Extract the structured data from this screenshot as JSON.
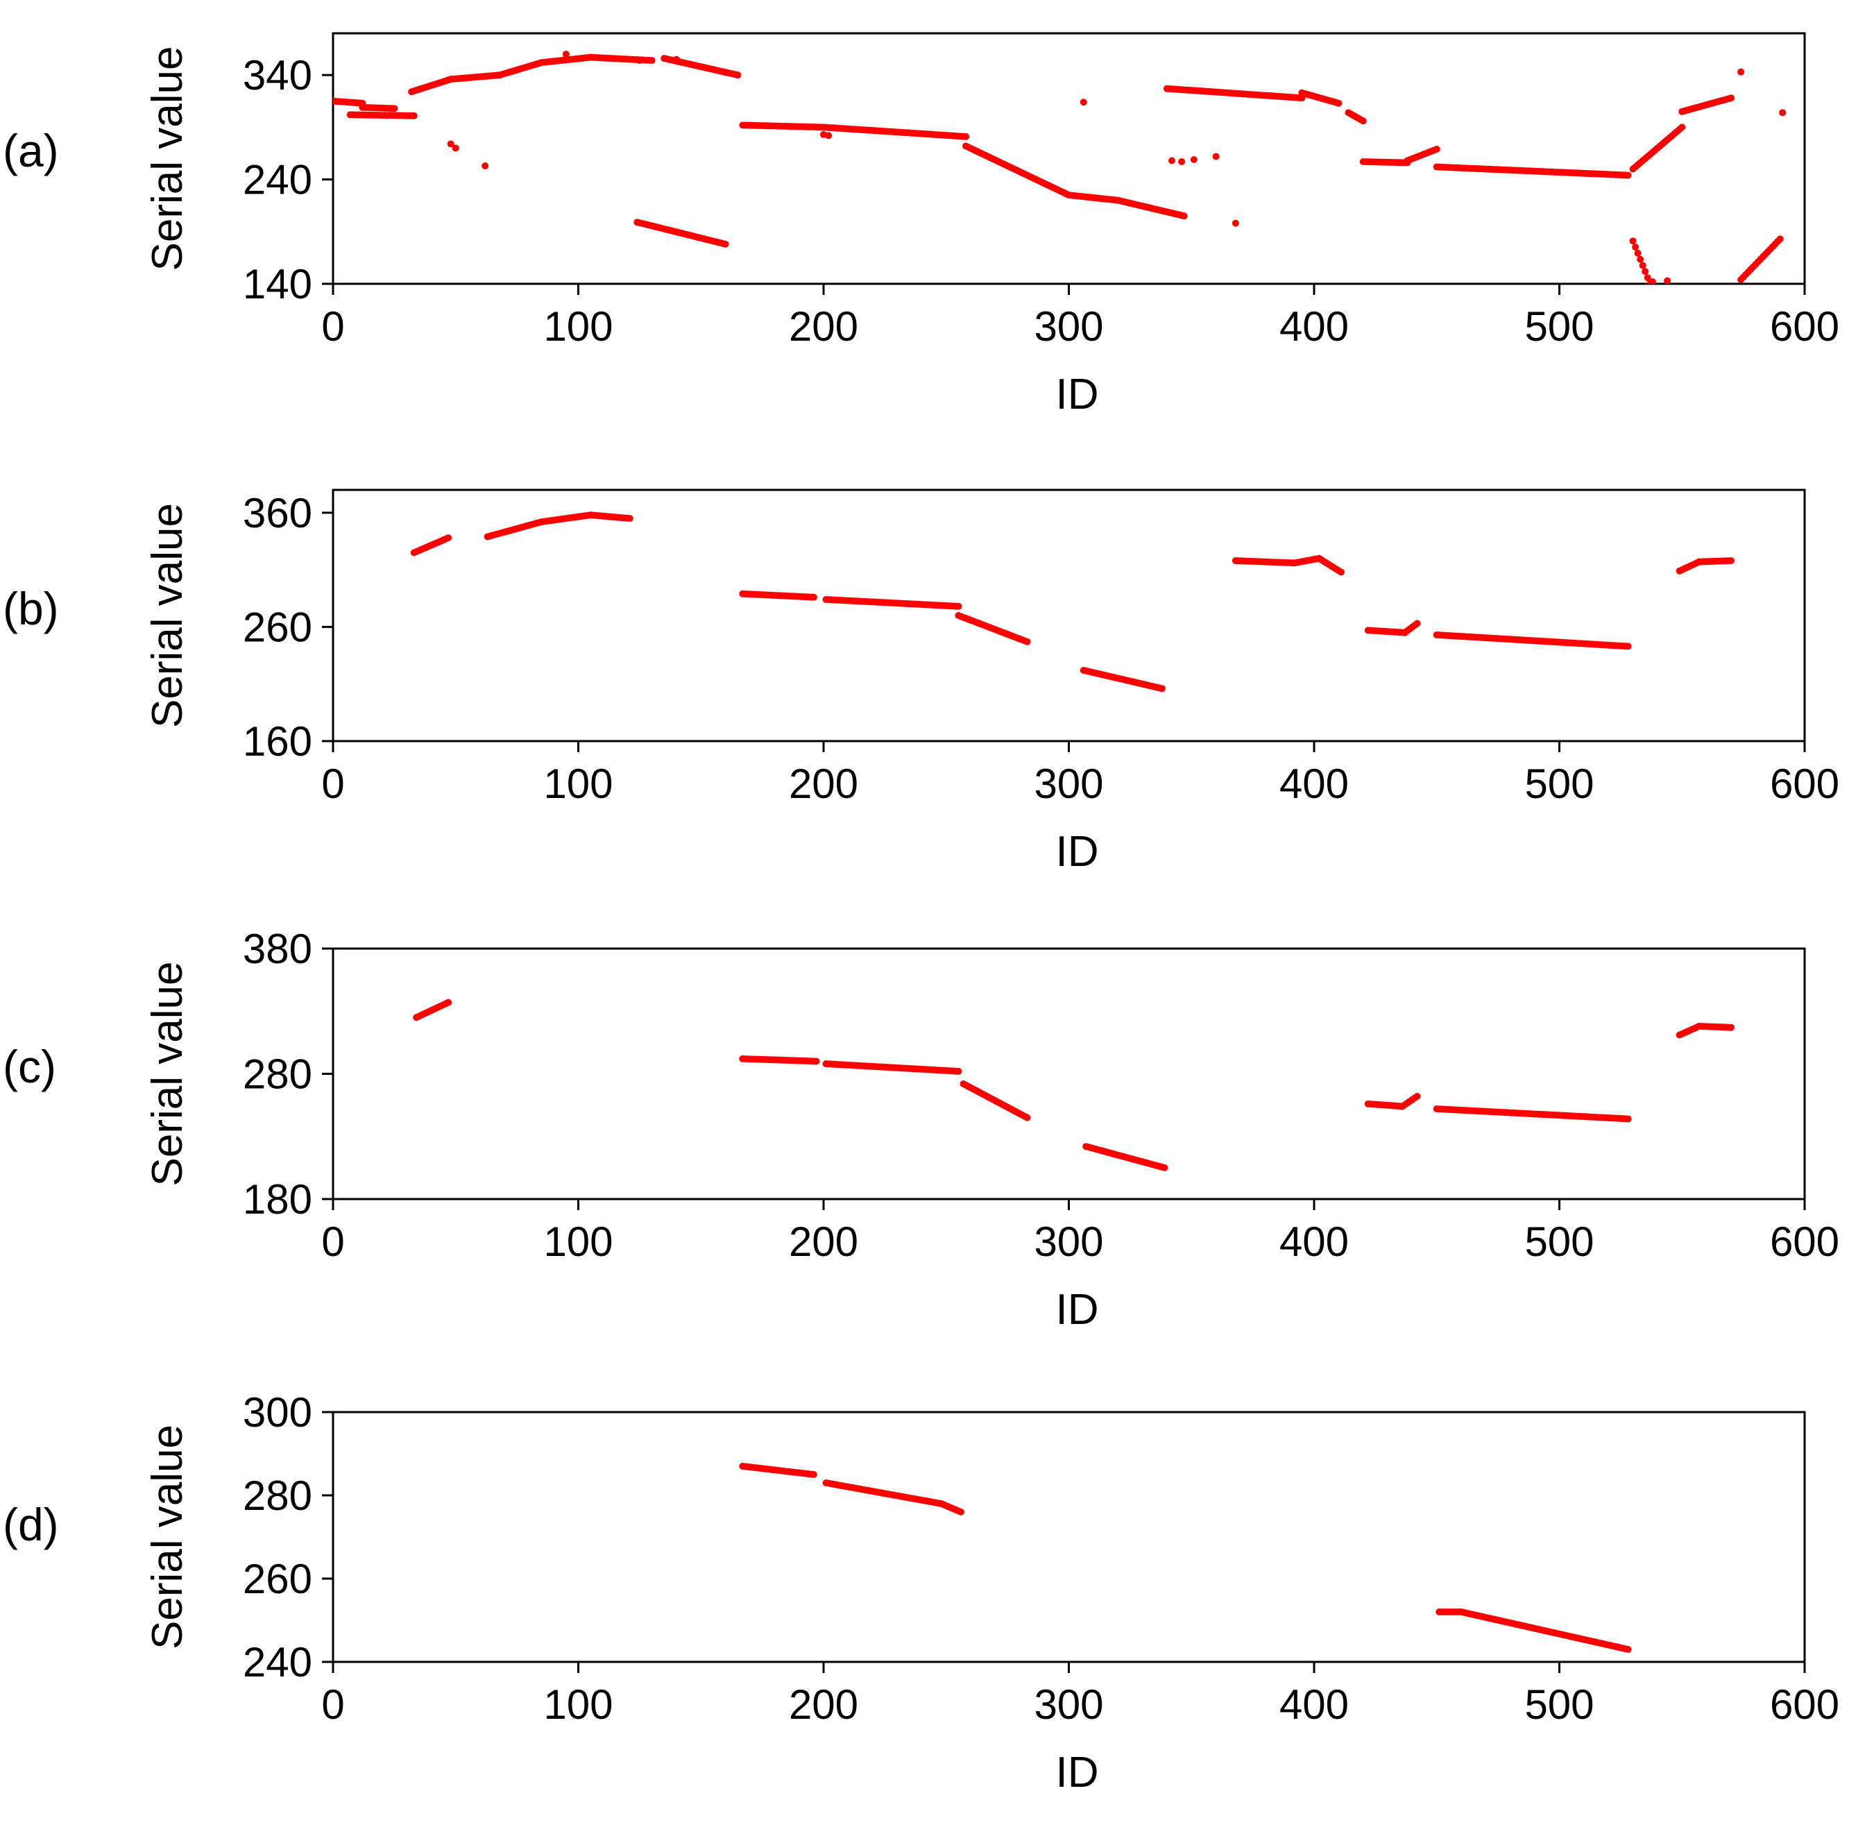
{
  "chart_data": [
    {
      "type": "scatter",
      "panel_label": "(a)",
      "xlabel": "ID",
      "ylabel": "Serial value",
      "xlim": [
        0,
        600
      ],
      "ylim": [
        140,
        380
      ],
      "xticks": [
        0,
        100,
        200,
        300,
        400,
        500,
        600
      ],
      "xtick_labels": [
        "0",
        "100",
        "200",
        "300",
        "400",
        "500",
        "600"
      ],
      "yticks": [
        140,
        240,
        340
      ],
      "ytick_labels": [
        "140",
        "240",
        "340"
      ],
      "marker_color": "#ff0000",
      "segments": [
        {
          "x": [
            0,
            12
          ],
          "y": [
            315,
            313
          ]
        },
        {
          "x": [
            12,
            25
          ],
          "y": [
            309,
            308
          ]
        },
        {
          "x": [
            7,
            33
          ],
          "y": [
            302,
            301
          ]
        },
        {
          "x": [
            32,
            48
          ],
          "y": [
            324,
            336
          ]
        },
        {
          "x": [
            48,
            68
          ],
          "y": [
            336,
            340
          ]
        },
        {
          "x": [
            68,
            85
          ],
          "y": [
            340,
            352
          ]
        },
        {
          "x": [
            85,
            105
          ],
          "y": [
            352,
            357
          ]
        },
        {
          "x": [
            105,
            130
          ],
          "y": [
            357,
            354
          ]
        },
        {
          "x": [
            135,
            165
          ],
          "y": [
            356,
            340
          ]
        },
        {
          "x": [
            124,
            160
          ],
          "y": [
            199,
            178
          ]
        },
        {
          "x": [
            167,
            200
          ],
          "y": [
            292,
            290
          ]
        },
        {
          "x": [
            200,
            258
          ],
          "y": [
            290,
            281
          ]
        },
        {
          "x": [
            258,
            300
          ],
          "y": [
            272,
            225
          ]
        },
        {
          "x": [
            300,
            320
          ],
          "y": [
            225,
            220
          ]
        },
        {
          "x": [
            320,
            347
          ],
          "y": [
            220,
            205
          ]
        },
        {
          "x": [
            340,
            395
          ],
          "y": [
            327,
            318
          ]
        },
        {
          "x": [
            395,
            410
          ],
          "y": [
            323,
            313
          ]
        },
        {
          "x": [
            414,
            420
          ],
          "y": [
            304,
            296
          ]
        },
        {
          "x": [
            420,
            438
          ],
          "y": [
            257,
            256
          ]
        },
        {
          "x": [
            438,
            450
          ],
          "y": [
            258,
            269
          ]
        },
        {
          "x": [
            450,
            528
          ],
          "y": [
            252,
            244
          ]
        },
        {
          "x": [
            530,
            550
          ],
          "y": [
            250,
            290
          ]
        },
        {
          "x": [
            550,
            570
          ],
          "y": [
            305,
            318
          ]
        },
        {
          "x": [
            530,
            537
          ],
          "y": [
            181,
            140
          ]
        },
        {
          "x": [
            574,
            590
          ],
          "y": [
            144,
            183
          ]
        }
      ],
      "points": [
        [
          48,
          274
        ],
        [
          50,
          270
        ],
        [
          62,
          253
        ],
        [
          95,
          360
        ],
        [
          125,
          354
        ],
        [
          140,
          355
        ],
        [
          200,
          283
        ],
        [
          202,
          282
        ],
        [
          306,
          314
        ],
        [
          342,
          258
        ],
        [
          346,
          257
        ],
        [
          351,
          259
        ],
        [
          360,
          262
        ],
        [
          368,
          198
        ],
        [
          574,
          343
        ],
        [
          591,
          304
        ],
        [
          538,
          142
        ],
        [
          544,
          143
        ]
      ]
    },
    {
      "type": "scatter",
      "panel_label": "(b)",
      "xlabel": "ID",
      "ylabel": "Serial value",
      "xlim": [
        0,
        600
      ],
      "ylim": [
        160,
        380
      ],
      "xticks": [
        0,
        100,
        200,
        300,
        400,
        500,
        600
      ],
      "xtick_labels": [
        "0",
        "100",
        "200",
        "300",
        "400",
        "500",
        "600"
      ],
      "yticks": [
        160,
        260,
        360
      ],
      "ytick_labels": [
        "160",
        "260",
        "360"
      ],
      "marker_color": "#ff0000",
      "segments": [
        {
          "x": [
            33,
            47
          ],
          "y": [
            325,
            338
          ]
        },
        {
          "x": [
            63,
            85
          ],
          "y": [
            339,
            352
          ]
        },
        {
          "x": [
            85,
            105
          ],
          "y": [
            352,
            358
          ]
        },
        {
          "x": [
            105,
            121
          ],
          "y": [
            358,
            355
          ]
        },
        {
          "x": [
            167,
            196
          ],
          "y": [
            289,
            286
          ]
        },
        {
          "x": [
            201,
            255
          ],
          "y": [
            284,
            278
          ]
        },
        {
          "x": [
            255,
            283
          ],
          "y": [
            270,
            247
          ]
        },
        {
          "x": [
            306,
            338
          ],
          "y": [
            222,
            206
          ]
        },
        {
          "x": [
            368,
            392
          ],
          "y": [
            318,
            316
          ]
        },
        {
          "x": [
            392,
            402
          ],
          "y": [
            316,
            320
          ]
        },
        {
          "x": [
            402,
            411
          ],
          "y": [
            320,
            308
          ]
        },
        {
          "x": [
            422,
            437
          ],
          "y": [
            257,
            255
          ]
        },
        {
          "x": [
            437,
            442
          ],
          "y": [
            255,
            263
          ]
        },
        {
          "x": [
            450,
            528
          ],
          "y": [
            253,
            243
          ]
        },
        {
          "x": [
            549,
            557
          ],
          "y": [
            309,
            317
          ]
        },
        {
          "x": [
            557,
            570
          ],
          "y": [
            317,
            318
          ]
        }
      ],
      "points": []
    },
    {
      "type": "scatter",
      "panel_label": "(c)",
      "xlabel": "ID",
      "ylabel": "Serial value",
      "xlim": [
        0,
        600
      ],
      "ylim": [
        180,
        380
      ],
      "xticks": [
        0,
        100,
        200,
        300,
        400,
        500,
        600
      ],
      "xtick_labels": [
        "0",
        "100",
        "200",
        "300",
        "400",
        "500",
        "600"
      ],
      "yticks": [
        180,
        280,
        380
      ],
      "ytick_labels": [
        "180",
        "280",
        "380"
      ],
      "marker_color": "#ff0000",
      "segments": [
        {
          "x": [
            34,
            47
          ],
          "y": [
            325,
            337
          ]
        },
        {
          "x": [
            167,
            197
          ],
          "y": [
            292,
            290
          ]
        },
        {
          "x": [
            201,
            255
          ],
          "y": [
            288,
            282
          ]
        },
        {
          "x": [
            257,
            283
          ],
          "y": [
            272,
            245
          ]
        },
        {
          "x": [
            307,
            339
          ],
          "y": [
            222,
            205
          ]
        },
        {
          "x": [
            422,
            436
          ],
          "y": [
            256,
            254
          ]
        },
        {
          "x": [
            436,
            442
          ],
          "y": [
            254,
            262
          ]
        },
        {
          "x": [
            450,
            528
          ],
          "y": [
            252,
            244
          ]
        },
        {
          "x": [
            549,
            557
          ],
          "y": [
            311,
            318
          ]
        },
        {
          "x": [
            557,
            570
          ],
          "y": [
            318,
            317
          ]
        }
      ],
      "points": []
    },
    {
      "type": "scatter",
      "panel_label": "(d)",
      "xlabel": "ID",
      "ylabel": "Serial value",
      "xlim": [
        0,
        600
      ],
      "ylim": [
        240,
        300
      ],
      "xticks": [
        0,
        100,
        200,
        300,
        400,
        500,
        600
      ],
      "xtick_labels": [
        "0",
        "100",
        "200",
        "300",
        "400",
        "500",
        "600"
      ],
      "yticks": [
        240,
        260,
        280,
        300
      ],
      "ytick_labels": [
        "240",
        "260",
        "280",
        "300"
      ],
      "marker_color": "#ff0000",
      "segments": [
        {
          "x": [
            167,
            196
          ],
          "y": [
            287,
            285
          ]
        },
        {
          "x": [
            201,
            248
          ],
          "y": [
            283,
            278
          ]
        },
        {
          "x": [
            248,
            256
          ],
          "y": [
            278,
            276
          ]
        },
        {
          "x": [
            451,
            460
          ],
          "y": [
            252,
            252
          ]
        },
        {
          "x": [
            460,
            528
          ],
          "y": [
            252,
            243
          ]
        }
      ],
      "points": []
    }
  ]
}
